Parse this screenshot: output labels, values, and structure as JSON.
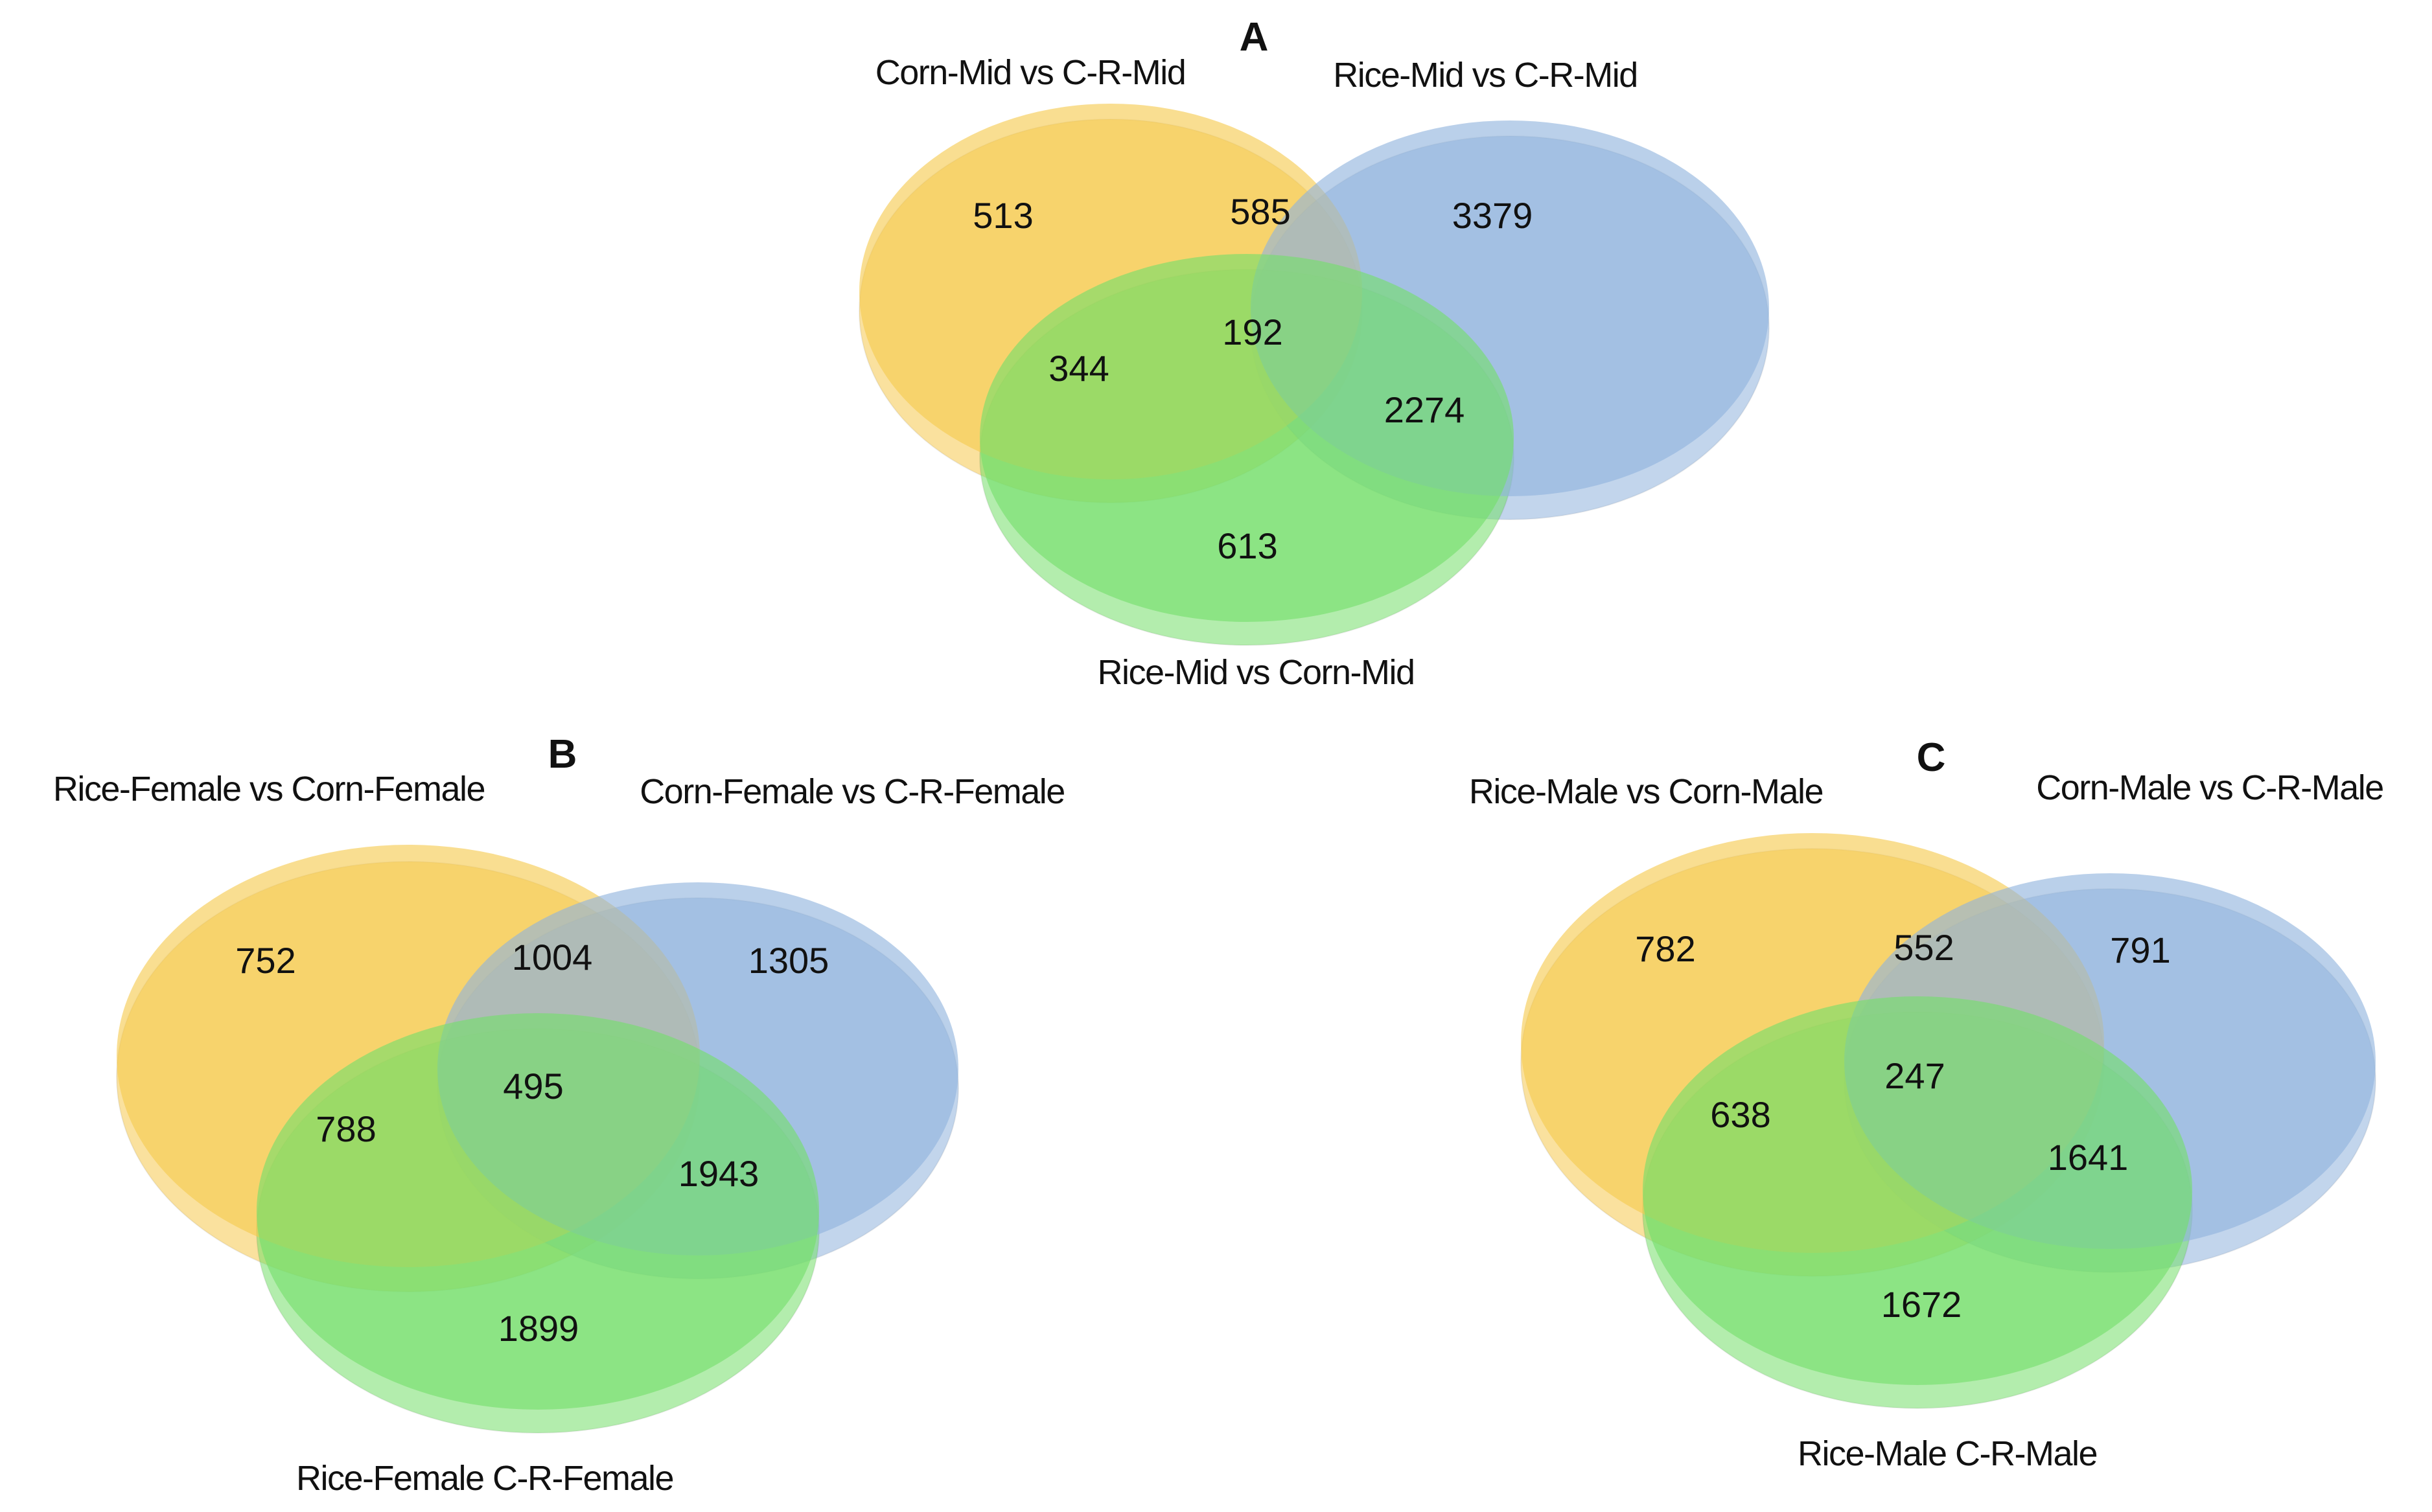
{
  "figure": {
    "type": "three-set venn diagrams",
    "colors": {
      "set1": "#f5c94e",
      "set2": "#8fb3dd",
      "set3": "#74de6a",
      "text": "#111111"
    },
    "panels": {
      "A": {
        "letter": "A",
        "labels": {
          "left": "Corn-Mid vs C-R-Mid",
          "right": "Rice-Mid vs C-R-Mid",
          "bottom": "Rice-Mid vs Corn-Mid"
        },
        "counts": {
          "left_only": "513",
          "left_right": "585",
          "right_only": "3379",
          "all_three": "192",
          "left_bottom": "344",
          "right_bottom": "2274",
          "bottom_only": "613"
        }
      },
      "B": {
        "letter": "B",
        "labels": {
          "left": "Rice-Female vs Corn-Female",
          "right": "Corn-Female vs C-R-Female",
          "bottom": "Rice-Female C-R-Female"
        },
        "counts": {
          "left_only": "752",
          "left_right": "1004",
          "right_only": "1305",
          "all_three": "495",
          "left_bottom": "788",
          "right_bottom": "1943",
          "bottom_only": "1899"
        }
      },
      "C": {
        "letter": "C",
        "labels": {
          "left": "Rice-Male vs Corn-Male",
          "right": "Corn-Male vs C-R-Male",
          "bottom": "Rice-Male C-R-Male"
        },
        "counts": {
          "left_only": "782",
          "left_right": "552",
          "right_only": "791",
          "all_three": "247",
          "left_bottom": "638",
          "right_bottom": "1641",
          "bottom_only": "1672"
        }
      }
    }
  }
}
